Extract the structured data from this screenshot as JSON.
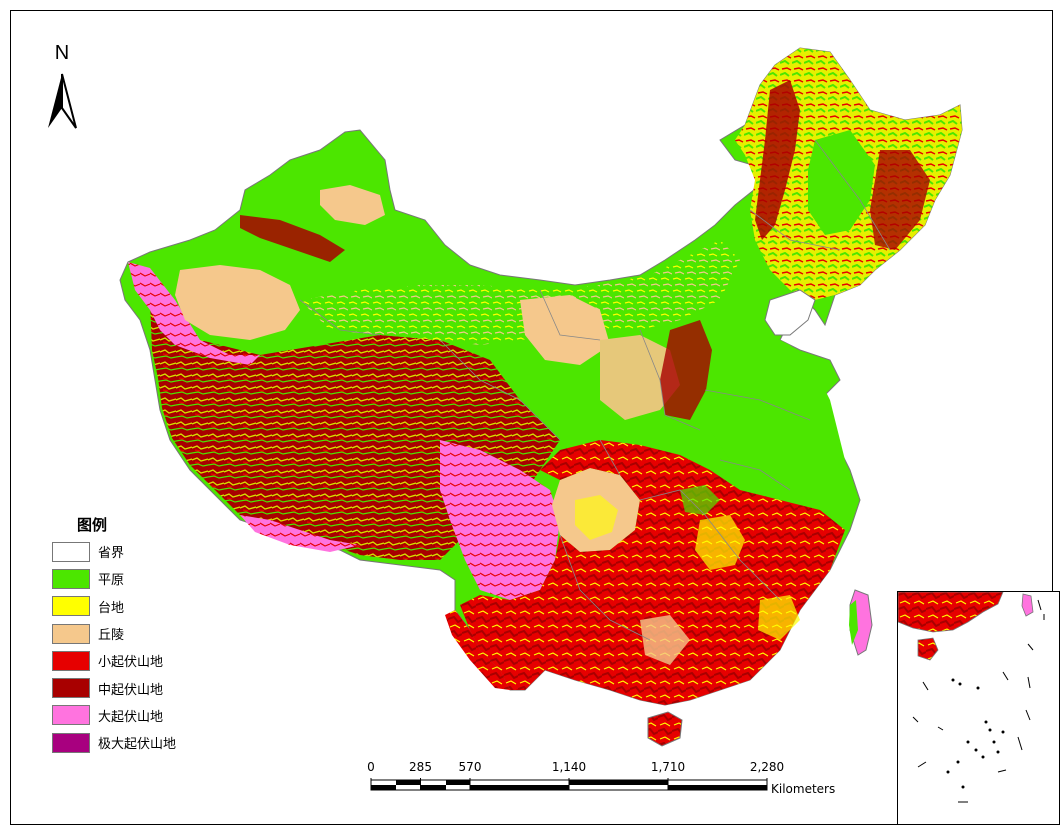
{
  "north_arrow": {
    "label": "N"
  },
  "legend": {
    "title": "图例",
    "items": [
      {
        "label": "省界",
        "color": "#ffffff"
      },
      {
        "label": "平原",
        "color": "#4ce600"
      },
      {
        "label": "台地",
        "color": "#ffff00"
      },
      {
        "label": "丘陵",
        "color": "#f5c88c"
      },
      {
        "label": "小起伏山地",
        "color": "#e60000"
      },
      {
        "label": "中起伏山地",
        "color": "#a80000"
      },
      {
        "label": "大起伏山地",
        "color": "#ff73df"
      },
      {
        "label": "极大起伏山地",
        "color": "#a8007f"
      }
    ]
  },
  "scale_bar": {
    "ticks": [
      "0",
      "285",
      "570",
      "1,140",
      "1,710",
      "2,280"
    ],
    "units": "Kilometers"
  }
}
